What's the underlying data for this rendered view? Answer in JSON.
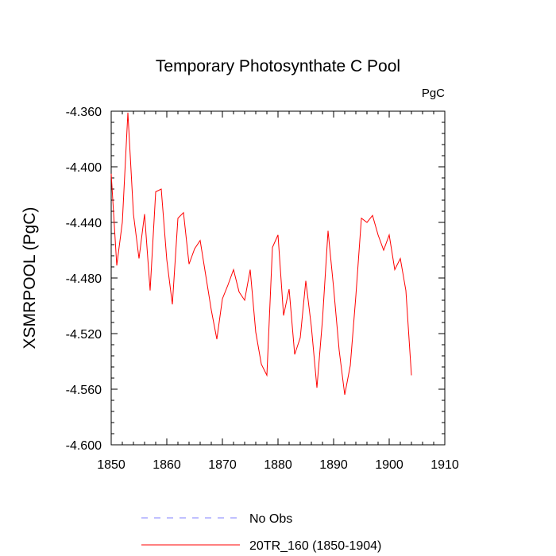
{
  "chart_data": {
    "type": "line",
    "title": "Temporary Photosynthate C Pool",
    "units_label": "PgC",
    "xlabel": "",
    "ylabel": "XSMRPOOL  (PgC)",
    "xlim": [
      1850,
      1910
    ],
    "ylim": [
      -4.6,
      -4.36
    ],
    "x_ticks": [
      1850,
      1860,
      1870,
      1880,
      1890,
      1900,
      1910
    ],
    "y_ticks": [
      -4.6,
      -4.56,
      -4.52,
      -4.48,
      -4.44,
      -4.4,
      -4.36
    ],
    "y_tick_labels": [
      "-4.600",
      "-4.560",
      "-4.520",
      "-4.480",
      "-4.440",
      "-4.400",
      "-4.360"
    ],
    "grid": false,
    "legend_position": "bottom",
    "series": [
      {
        "name": "No Obs",
        "color": "#8080ff",
        "dash": "dashed",
        "x": [],
        "values": []
      },
      {
        "name": "20TR_160 (1850-1904)",
        "color": "#ff0000",
        "dash": "solid",
        "x": [
          1850,
          1851,
          1852,
          1853,
          1854,
          1855,
          1856,
          1857,
          1858,
          1859,
          1860,
          1861,
          1862,
          1863,
          1864,
          1865,
          1866,
          1867,
          1868,
          1869,
          1870,
          1871,
          1872,
          1873,
          1874,
          1875,
          1876,
          1877,
          1878,
          1879,
          1880,
          1881,
          1882,
          1883,
          1884,
          1885,
          1886,
          1887,
          1888,
          1889,
          1890,
          1891,
          1892,
          1893,
          1894,
          1895,
          1896,
          1897,
          1898,
          1899,
          1900,
          1901,
          1902,
          1903,
          1904
        ],
        "values": [
          -4.405,
          -4.471,
          -4.44,
          -4.361,
          -4.434,
          -4.466,
          -4.434,
          -4.489,
          -4.418,
          -4.416,
          -4.467,
          -4.499,
          -4.437,
          -4.433,
          -4.47,
          -4.459,
          -4.453,
          -4.478,
          -4.503,
          -4.524,
          -4.495,
          -4.485,
          -4.474,
          -4.49,
          -4.496,
          -4.474,
          -4.519,
          -4.542,
          -4.55,
          -4.458,
          -4.449,
          -4.507,
          -4.488,
          -4.535,
          -4.523,
          -4.482,
          -4.515,
          -4.559,
          -4.51,
          -4.446,
          -4.487,
          -4.532,
          -4.564,
          -4.543,
          -4.493,
          -4.437,
          -4.44,
          -4.435,
          -4.449,
          -4.46,
          -4.449,
          -4.474,
          -4.466,
          -4.489,
          -4.55
        ]
      }
    ]
  }
}
